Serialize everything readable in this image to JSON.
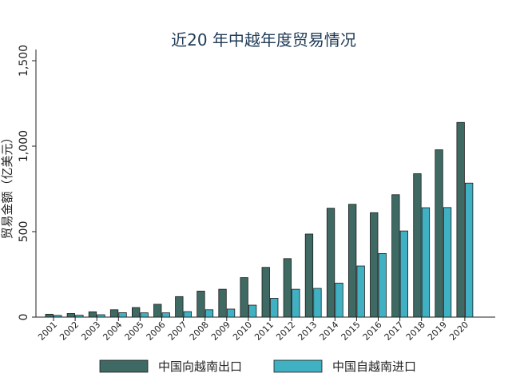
{
  "chart_data": {
    "type": "bar",
    "title": "近20 年中越年度贸易情况",
    "xlabel": "",
    "ylabel": "贸易金额（亿美元）",
    "ylim": [
      0,
      1600
    ],
    "yticks": [
      0,
      500,
      1000,
      1500
    ],
    "ytick_labels": [
      "0",
      "500",
      "1,000",
      "1,500"
    ],
    "categories": [
      "2001",
      "2002",
      "2003",
      "2004",
      "2005",
      "2006",
      "2007",
      "2008",
      "2009",
      "2010",
      "2011",
      "2012",
      "2013",
      "2014",
      "2015",
      "2016",
      "2017",
      "2018",
      "2019",
      "2020"
    ],
    "series": [
      {
        "name": "中国向越南出口",
        "color": "#3e6a63",
        "values": [
          17,
          21,
          31,
          43,
          56,
          75,
          120,
          152,
          163,
          231,
          291,
          342,
          486,
          637,
          660,
          611,
          716,
          839,
          979,
          1139
        ]
      },
      {
        "name": "中国自越南进口",
        "color": "#3fb1c3",
        "values": [
          10,
          11,
          14,
          26,
          25,
          25,
          32,
          43,
          47,
          70,
          110,
          163,
          168,
          199,
          299,
          372,
          504,
          640,
          641,
          784
        ]
      }
    ],
    "grid": false,
    "legend_position": "bottom"
  }
}
